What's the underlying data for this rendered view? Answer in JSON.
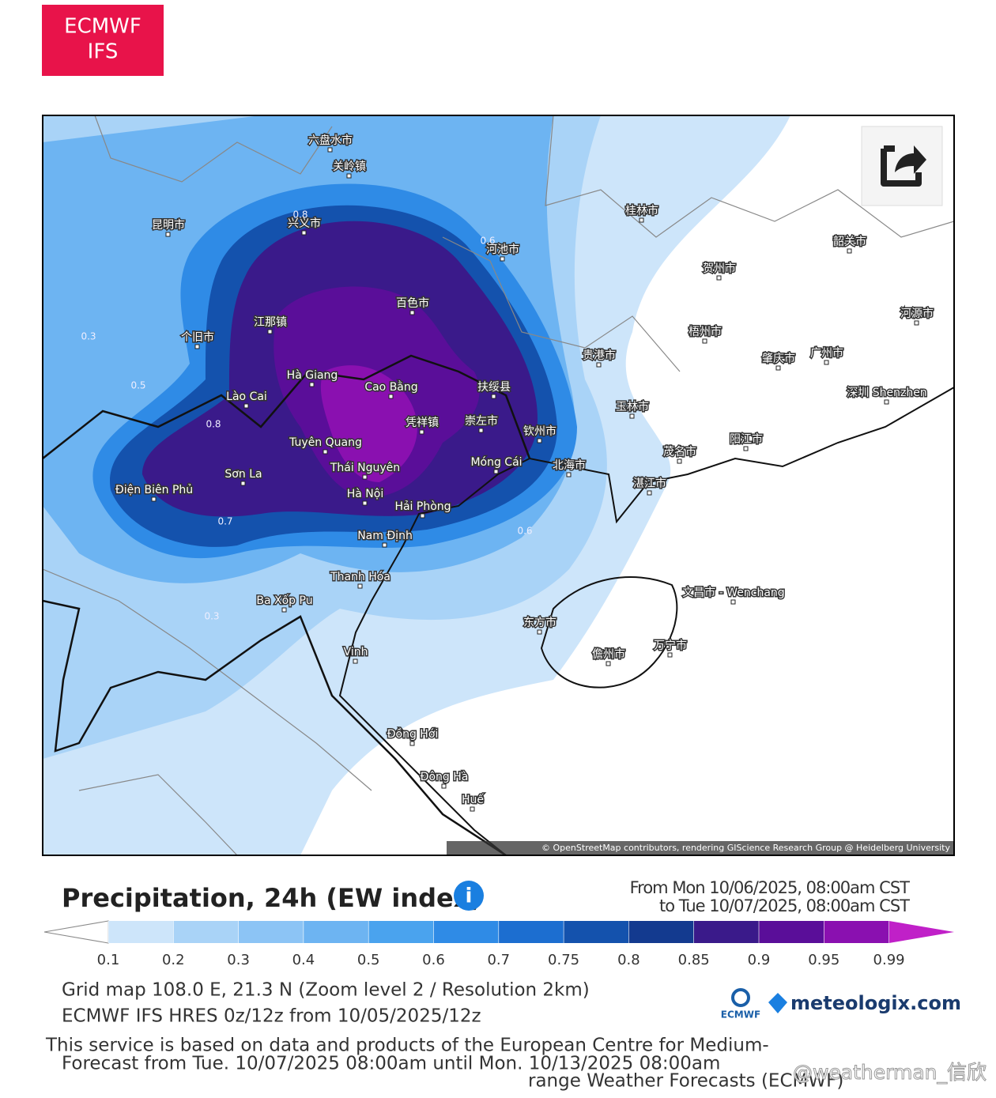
{
  "badge": {
    "line1": "ECMWF",
    "line2": "IFS"
  },
  "map": {
    "labels": [
      "Hà Giang",
      "Cao Bằng",
      "Lào Cai",
      "Tuyên Quang",
      "Thái Nguyên",
      "Sơn La",
      "Điện Biên Phủ",
      "Hà Nội",
      "Hải Phòng",
      "Móng Cái",
      "Nam Định",
      "Thanh Hóa",
      "Vinh",
      "Đồng Hới",
      "Đông Hà",
      "Huế",
      "Ba Xốp Pu",
      "兴义市",
      "百色市",
      "河池市",
      "江那镇",
      "个旧市",
      "贵港市",
      "玉林市",
      "钦州市",
      "北海市",
      "湛江市",
      "茂名市",
      "阳江市",
      "广州市",
      "深圳 Shenzhen",
      "文昌市 - Wenchang",
      "东方市",
      "万宁市",
      "昆明市",
      "扶绥县",
      "崇左市",
      "凭祥镇",
      "关岭镇",
      "六盘水市",
      "桂林市",
      "梧州市",
      "肇庆市",
      "贺州市",
      "河源市",
      "韶关市",
      "儋州市"
    ],
    "contour_labels": [
      0.8,
      0.6,
      0.5,
      0.3,
      0.7,
      0.8,
      0.6,
      0.3
    ],
    "attribution": "© OpenStreetMap contributors, rendering GIScience Research Group @ Heidelberg University"
  },
  "legend": {
    "title": "Precipitation, 24h (EW index)",
    "from": "From Mon 10/06/2025, 08:00am CST",
    "to": "to Tue 10/07/2025, 08:00am CST",
    "ticks": [
      0.1,
      0.2,
      0.3,
      0.4,
      0.5,
      0.6,
      0.7,
      0.75,
      0.8,
      0.85,
      0.9,
      0.95,
      0.99
    ],
    "under_color": "#ffffff",
    "colors": [
      "#cde5fa",
      "#a9d3f7",
      "#8cc4f5",
      "#6db4f2",
      "#4aa3ee",
      "#2f8be6",
      "#1c6ed0",
      "#1452ad",
      "#133a8f",
      "#3a1a8a",
      "#5a0e99",
      "#8a10b0",
      "#c020c8"
    ]
  },
  "footer": {
    "grid": "Grid map 108.0 E, 21.3 N (Zoom level 2 / Resolution 2km)",
    "model": "ECMWF IFS HRES 0z/12z from 10/05/2025/12z",
    "service1": "This service is based on data and products of the European Centre for Medium-",
    "forecast": "Forecast from Tue. 10/07/2025 08:00am until Mon. 10/13/2025 08:00am",
    "service2": "range Weather Forecasts (ECMWF)",
    "logo_small": "ECMWF",
    "logo": "meteologix.com"
  },
  "watermark": "@weatherman_信欣"
}
